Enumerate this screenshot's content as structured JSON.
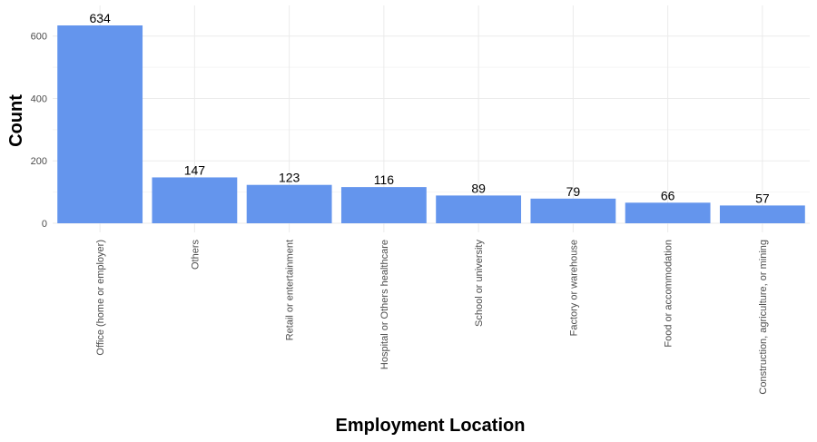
{
  "chart_data": {
    "type": "bar",
    "categories": [
      "Office (home or employer)",
      "Others",
      "Retail or entertainment",
      "Hospital or Others healthcare",
      "School or university",
      "Factory or warehouse",
      "Food or accommodation",
      "Construction, agriculture, or mining"
    ],
    "values": [
      634,
      147,
      123,
      116,
      89,
      79,
      66,
      57
    ],
    "title": "",
    "xlabel": "Employment Location",
    "ylabel": "Count",
    "ylim": [
      0,
      634
    ],
    "yticks": [
      0,
      200,
      400,
      600
    ],
    "bar_color": "#6495ED",
    "grid": true,
    "legend": "none"
  }
}
